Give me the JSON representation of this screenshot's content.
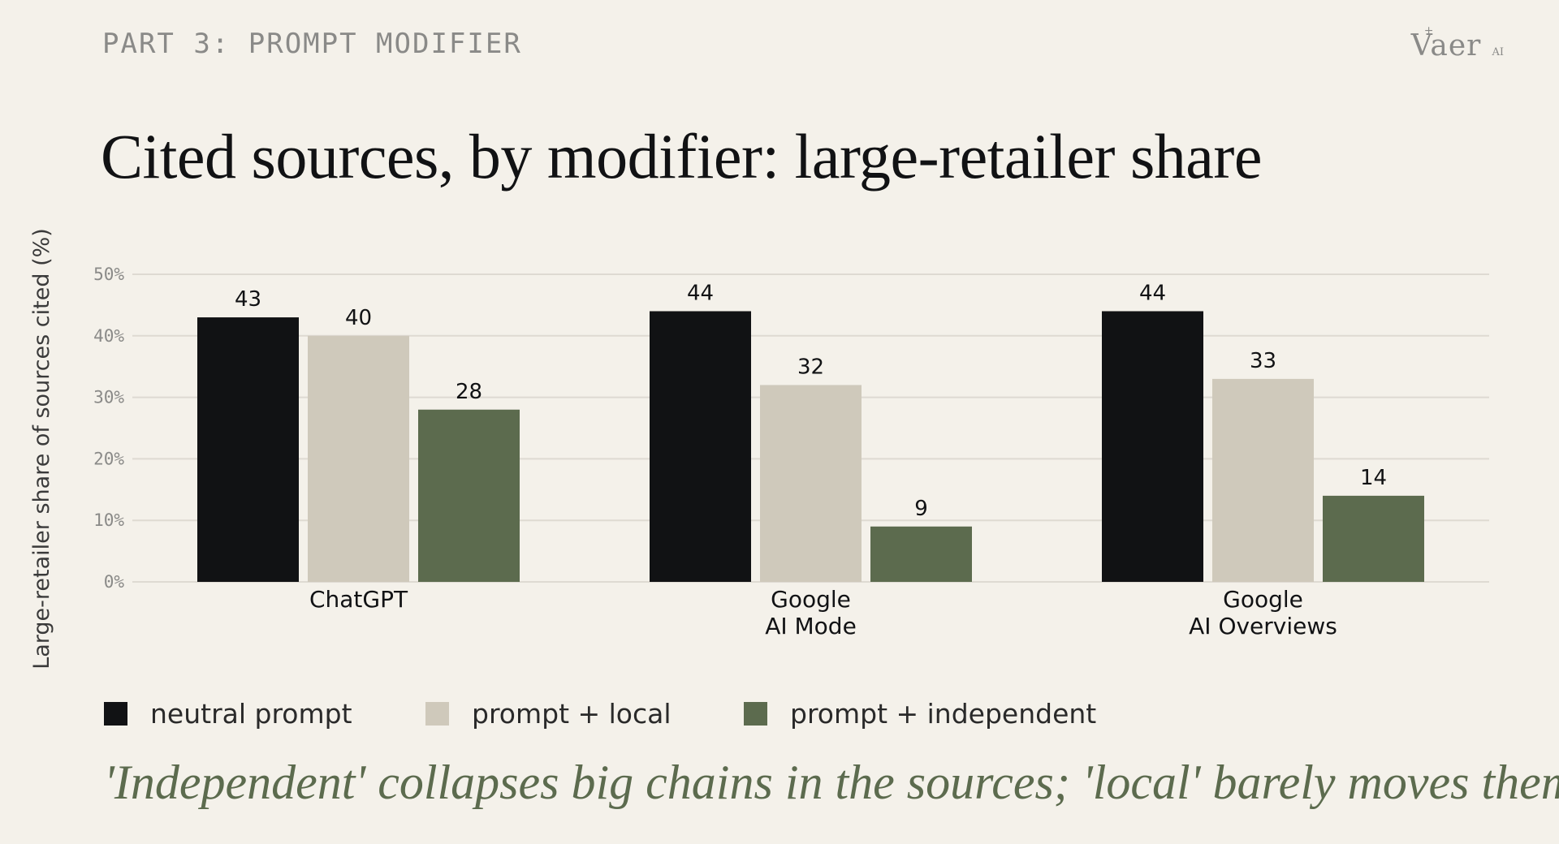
{
  "header": {
    "kicker": "PART 3: PROMPT MODIFIER",
    "brand_name": "Vaer",
    "brand_sub": "AI",
    "brand_spark": "+"
  },
  "title": "Cited sources, by modifier: large-retailer share",
  "takeaway": "'Independent' collapses big chains in the sources; 'local' barely moves them.",
  "colors": {
    "background": "#f4f1ea",
    "neutral": "#111214",
    "local": "#cfc9bb",
    "independent": "#5c6b4e",
    "grid": "#dedad2",
    "tick": "#8a8a88"
  },
  "chart_data": {
    "type": "bar",
    "categories": [
      "ChatGPT",
      "Google\nAI Mode",
      "Google\nAI Overviews"
    ],
    "series": [
      {
        "name": "neutral prompt",
        "values": [
          43,
          44,
          44
        ],
        "color": "#111214"
      },
      {
        "name": "prompt + local",
        "values": [
          40,
          32,
          33
        ],
        "color": "#cfc9bb"
      },
      {
        "name": "prompt + independent",
        "values": [
          28,
          9,
          14
        ],
        "color": "#5c6b4e"
      }
    ],
    "ylabel": "Large-retailer share of sources cited (%)",
    "ylim": [
      0,
      50
    ],
    "yticks": [
      0,
      10,
      20,
      30,
      40,
      50
    ],
    "ytick_suffix": "%",
    "grid": true,
    "legend_position": "bottom"
  }
}
